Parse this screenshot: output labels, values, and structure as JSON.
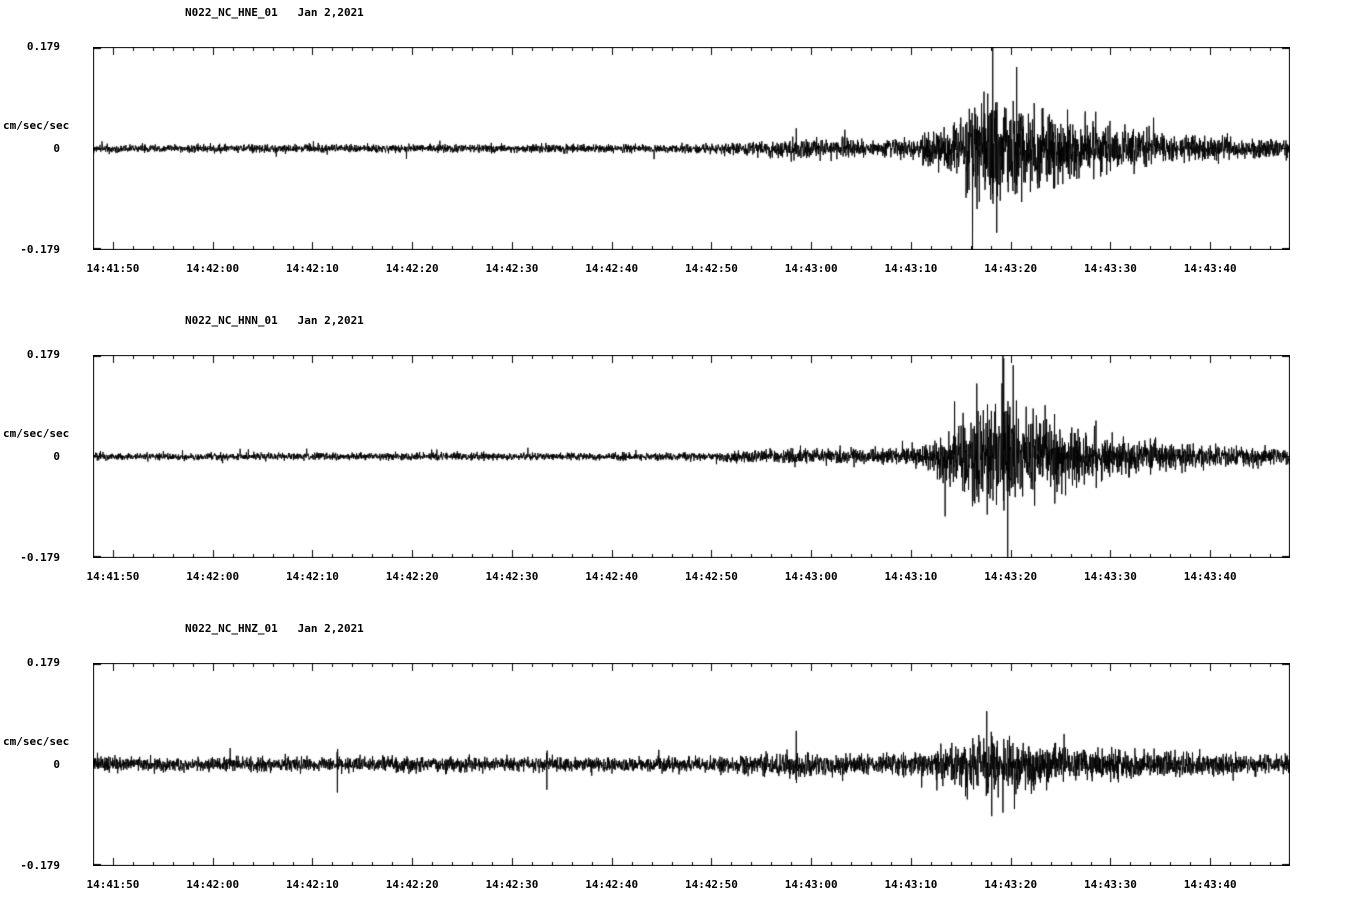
{
  "page": {
    "background": "#ffffff",
    "foreground": "#000000"
  },
  "chart_data": [
    {
      "type": "line",
      "title": "N022_NC_HNE_01   Jan 2,2021",
      "ylabel": "cm/sec/sec",
      "ylim": [
        -0.179,
        0.179
      ],
      "ytick_labels": [
        "0.179",
        "0",
        "-0.179"
      ],
      "xtick_labels": [
        "14:41:50",
        "14:42:00",
        "14:42:10",
        "14:42:20",
        "14:42:30",
        "14:42:40",
        "14:42:50",
        "14:43:00",
        "14:43:10",
        "14:43:20",
        "14:43:30",
        "14:43:40"
      ],
      "xtick_seconds": [
        2,
        12,
        22,
        32,
        42,
        52,
        62,
        72,
        82,
        92,
        102,
        112
      ],
      "duration_seconds": 120,
      "line_color": "#000000",
      "grid": false,
      "legend": "none",
      "noise_seed": 101,
      "envelope": [
        [
          0,
          0.012
        ],
        [
          55,
          0.012
        ],
        [
          62,
          0.014
        ],
        [
          66,
          0.02
        ],
        [
          70,
          0.03
        ],
        [
          74,
          0.025
        ],
        [
          78,
          0.022
        ],
        [
          82,
          0.03
        ],
        [
          84,
          0.05
        ],
        [
          86,
          0.08
        ],
        [
          88,
          0.12
        ],
        [
          90,
          0.175
        ],
        [
          91,
          0.16
        ],
        [
          93,
          0.12
        ],
        [
          96,
          0.11
        ],
        [
          99,
          0.09
        ],
        [
          102,
          0.07
        ],
        [
          105,
          0.055
        ],
        [
          109,
          0.04
        ],
        [
          113,
          0.035
        ],
        [
          116,
          0.03
        ],
        [
          120,
          0.028
        ]
      ],
      "spikes": [
        [
          90.2,
          0.179
        ],
        [
          90.6,
          -0.15
        ],
        [
          92.6,
          0.145
        ]
      ]
    },
    {
      "type": "line",
      "title": "N022_NC_HNN_01   Jan 2,2021",
      "ylabel": "cm/sec/sec",
      "ylim": [
        -0.179,
        0.179
      ],
      "ytick_labels": [
        "0.179",
        "0",
        "-0.179"
      ],
      "xtick_labels": [
        "14:41:50",
        "14:42:00",
        "14:42:10",
        "14:42:20",
        "14:42:30",
        "14:42:40",
        "14:42:50",
        "14:43:00",
        "14:43:10",
        "14:43:20",
        "14:43:30",
        "14:43:40"
      ],
      "xtick_seconds": [
        2,
        12,
        22,
        32,
        42,
        52,
        62,
        72,
        82,
        92,
        102,
        112
      ],
      "duration_seconds": 120,
      "line_color": "#000000",
      "grid": false,
      "legend": "none",
      "noise_seed": 202,
      "envelope": [
        [
          0,
          0.011
        ],
        [
          55,
          0.011
        ],
        [
          62,
          0.013
        ],
        [
          66,
          0.018
        ],
        [
          70,
          0.025
        ],
        [
          74,
          0.02
        ],
        [
          78,
          0.022
        ],
        [
          82,
          0.028
        ],
        [
          84,
          0.045
        ],
        [
          86,
          0.08
        ],
        [
          88,
          0.13
        ],
        [
          90,
          0.17
        ],
        [
          91.5,
          0.175
        ],
        [
          93,
          0.13
        ],
        [
          96,
          0.11
        ],
        [
          99,
          0.085
        ],
        [
          102,
          0.065
        ],
        [
          105,
          0.05
        ],
        [
          109,
          0.038
        ],
        [
          113,
          0.03
        ],
        [
          116,
          0.026
        ],
        [
          120,
          0.024
        ]
      ],
      "spikes": [
        [
          91.3,
          0.175
        ],
        [
          91.7,
          -0.179
        ],
        [
          88.6,
          0.13
        ]
      ]
    },
    {
      "type": "line",
      "title": "N022_NC_HNZ_01   Jan 2,2021",
      "ylabel": "cm/sec/sec",
      "ylim": [
        -0.179,
        0.179
      ],
      "ytick_labels": [
        "0.179",
        "0",
        "-0.179"
      ],
      "xtick_labels": [
        "14:41:50",
        "14:42:00",
        "14:42:10",
        "14:42:20",
        "14:42:30",
        "14:42:40",
        "14:42:50",
        "14:43:00",
        "14:43:10",
        "14:43:20",
        "14:43:30",
        "14:43:40"
      ],
      "xtick_seconds": [
        2,
        12,
        22,
        32,
        42,
        52,
        62,
        72,
        82,
        92,
        102,
        112
      ],
      "duration_seconds": 120,
      "line_color": "#000000",
      "grid": false,
      "legend": "none",
      "noise_seed": 303,
      "envelope": [
        [
          0,
          0.02
        ],
        [
          40,
          0.022
        ],
        [
          55,
          0.02
        ],
        [
          62,
          0.025
        ],
        [
          66,
          0.03
        ],
        [
          70,
          0.04
        ],
        [
          72,
          0.035
        ],
        [
          76,
          0.03
        ],
        [
          80,
          0.03
        ],
        [
          84,
          0.04
        ],
        [
          86,
          0.055
        ],
        [
          88,
          0.075
        ],
        [
          90,
          0.09
        ],
        [
          92,
          0.075
        ],
        [
          95,
          0.06
        ],
        [
          99,
          0.05
        ],
        [
          103,
          0.042
        ],
        [
          108,
          0.035
        ],
        [
          113,
          0.03
        ],
        [
          120,
          0.028
        ]
      ],
      "spikes": [
        [
          89.6,
          0.095
        ],
        [
          90.1,
          -0.092
        ],
        [
          24.5,
          -0.05
        ],
        [
          45.5,
          -0.045
        ],
        [
          70.5,
          0.06
        ]
      ]
    }
  ]
}
